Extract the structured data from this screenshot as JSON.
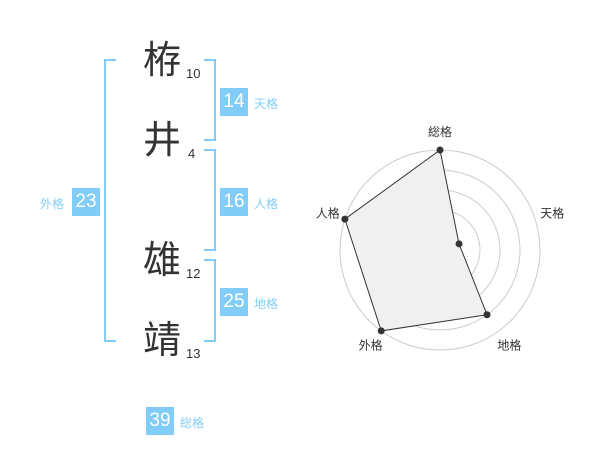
{
  "name_chars": [
    {
      "char": "栫",
      "strokes": "10"
    },
    {
      "char": "井",
      "strokes": "4"
    },
    {
      "char": "雄",
      "strokes": "12"
    },
    {
      "char": "靖",
      "strokes": "13"
    }
  ],
  "fortunes": {
    "tenkaku": {
      "value": "14",
      "label": "天格"
    },
    "jinkaku": {
      "value": "16",
      "label": "人格"
    },
    "chikaku": {
      "value": "25",
      "label": "地格"
    },
    "gaikaku": {
      "value": "23",
      "label": "外格"
    },
    "soukaku": {
      "value": "39",
      "label": "総格"
    }
  },
  "colors": {
    "accent": "#82cdf7",
    "fill": "#f0f0f0",
    "line": "#333333",
    "grid": "#cccccc"
  },
  "chart_data": {
    "type": "radar",
    "categories": [
      "総格",
      "天格",
      "地格",
      "外格",
      "人格"
    ],
    "values": [
      5,
      1,
      4,
      5,
      5
    ],
    "range": [
      0,
      5
    ],
    "grid": true
  }
}
